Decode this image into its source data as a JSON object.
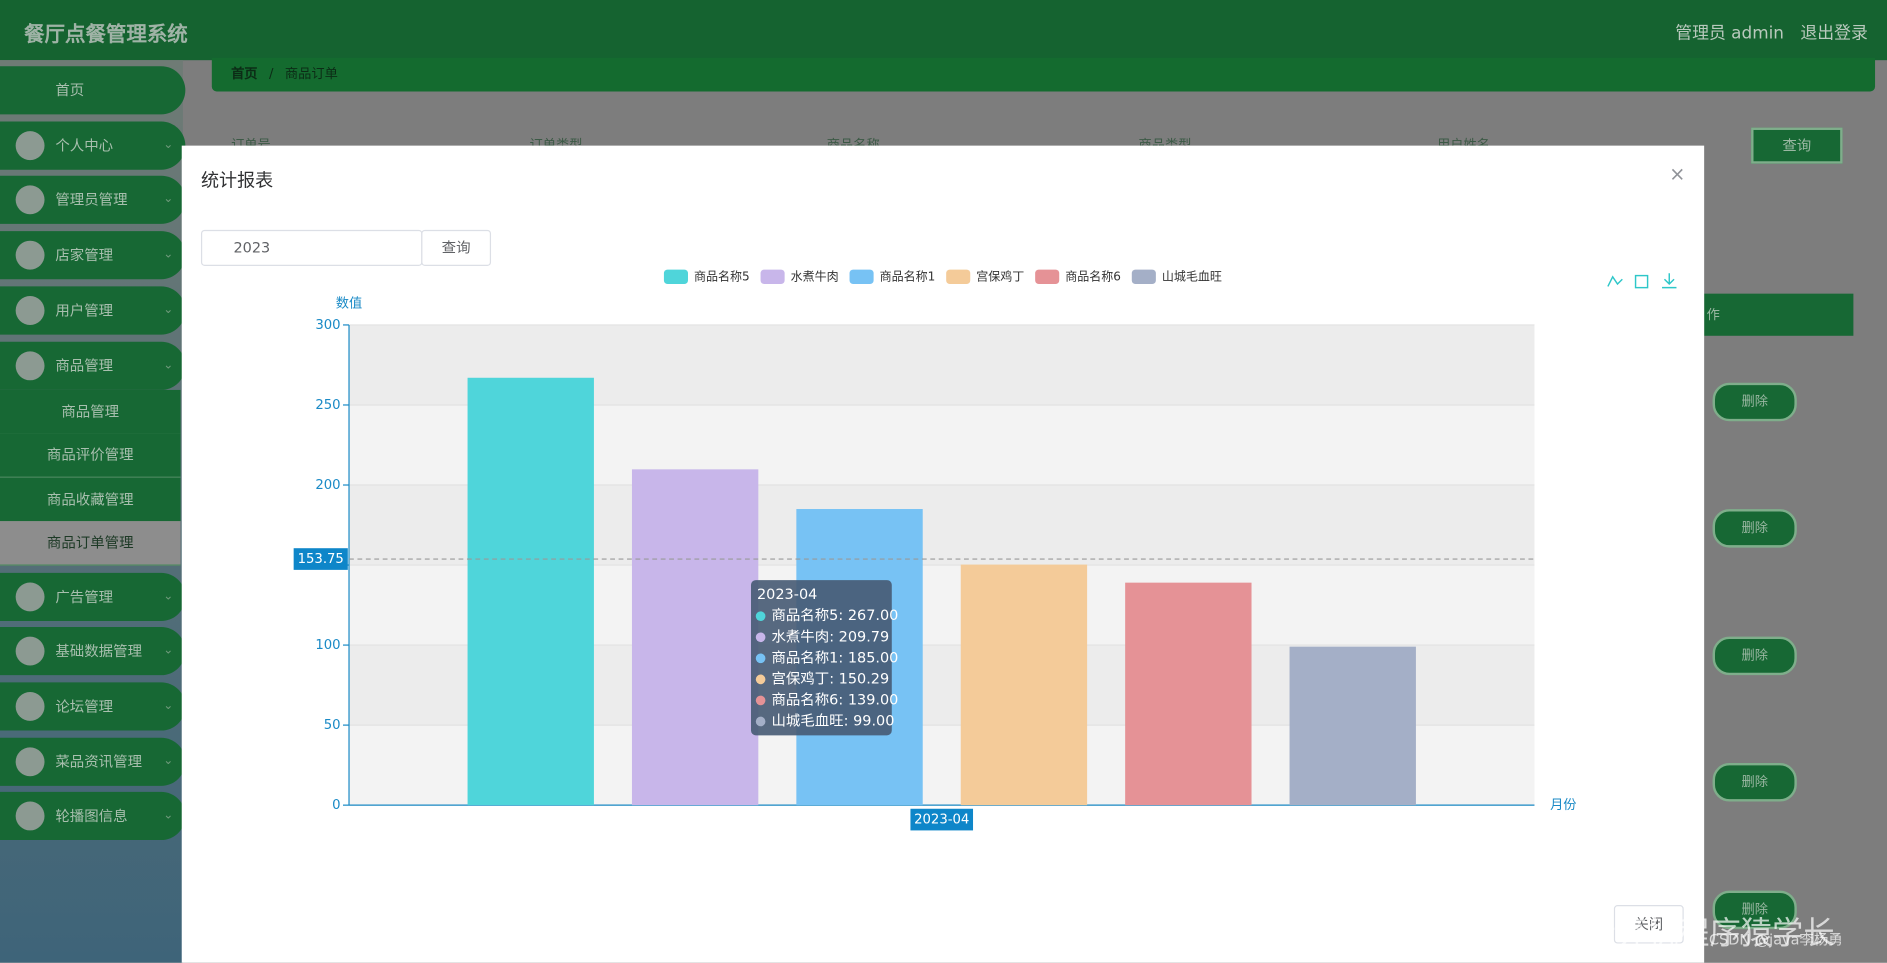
{
  "header": {
    "title": "餐厅点餐管理系统",
    "user": "管理员 admin",
    "logout": "退出登录"
  },
  "sidebar": {
    "items": [
      "首页",
      "个人中心",
      "管理员管理",
      "店家管理",
      "用户管理",
      "商品管理",
      "广告管理",
      "基础数据管理",
      "论坛管理",
      "菜品资讯管理",
      "轮播图信息"
    ],
    "submenu": [
      "商品管理",
      "商品评价管理",
      "商品收藏管理",
      "商品订单管理"
    ]
  },
  "breadcrumb": [
    "首页",
    "商品订单"
  ],
  "search": {
    "fields": [
      "订单号",
      "订单类型",
      "商品名称",
      "商品类型",
      "用户姓名"
    ],
    "button": "查询"
  },
  "table": {
    "header_fragment": "作",
    "delete": "删除"
  },
  "modal": {
    "title": "统计报表",
    "date": "2023",
    "query": "查询",
    "close": "关闭"
  },
  "chart_data": {
    "type": "bar",
    "categories": [
      "2023-04"
    ],
    "series": [
      {
        "name": "商品名称5",
        "color": "#4fd5da",
        "values": [
          267
        ],
        "value_labels": [
          "267.00"
        ]
      },
      {
        "name": "水煮牛肉",
        "color": "#c8b6ea",
        "values": [
          209.79
        ],
        "value_labels": [
          "209.79"
        ]
      },
      {
        "name": "商品名称1",
        "color": "#77c2f4",
        "values": [
          185
        ],
        "value_labels": [
          "185.00"
        ]
      },
      {
        "name": "宫保鸡丁",
        "color": "#f4cb99",
        "values": [
          150.29
        ],
        "value_labels": [
          "150.29"
        ]
      },
      {
        "name": "商品名称6",
        "color": "#e59296",
        "values": [
          139
        ],
        "value_labels": [
          "139.00"
        ]
      },
      {
        "name": "山城毛血旺",
        "color": "#a4afc7",
        "values": [
          99
        ],
        "value_labels": [
          "99.00"
        ]
      }
    ],
    "ylim": [
      0,
      300
    ],
    "yticks": [
      0,
      50,
      100,
      150,
      200,
      250,
      300
    ],
    "y_axis_label": "数值",
    "x_axis_label": "月份",
    "grid": true,
    "legend": "top",
    "mark_line": {
      "value": 153.75
    }
  },
  "watermark": [
    "CSDN @java李杨勇",
    "CSDN @计算机程序猿学长"
  ]
}
